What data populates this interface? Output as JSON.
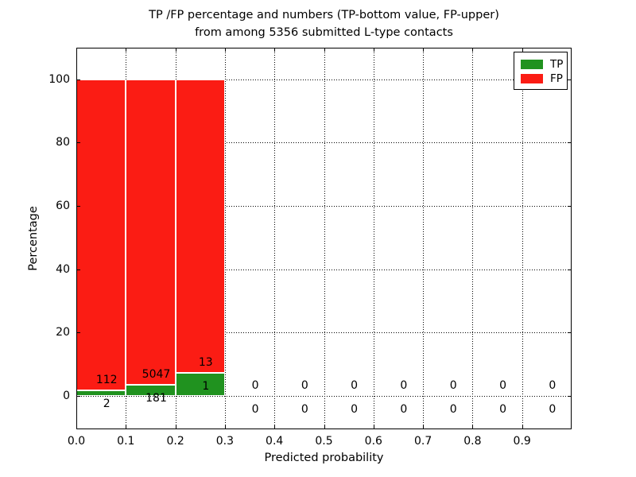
{
  "chart_data": {
    "type": "bar",
    "stacked": true,
    "title_line1": "TP /FP percentage and numbers (TP-bottom value, FP-upper)",
    "title_line2": "from among 5356 submitted L-type contacts",
    "xlabel": "Predicted probability",
    "ylabel": "Percentage",
    "xlim": [
      0.0,
      1.0
    ],
    "ylim": [
      -10.6,
      110
    ],
    "x_tick_labels": [
      "0.0",
      "0.1",
      "0.2",
      "0.3",
      "0.4",
      "0.5",
      "0.6",
      "0.7",
      "0.8",
      "0.9"
    ],
    "x_tick_values": [
      0.0,
      0.1,
      0.2,
      0.3,
      0.4,
      0.5,
      0.6,
      0.7,
      0.8,
      0.9
    ],
    "y_tick_values": [
      0,
      20,
      40,
      60,
      80,
      100
    ],
    "grid": "dotted",
    "legend_position": "upper right",
    "bin_width": 0.1,
    "bin_starts": [
      0.0,
      0.1,
      0.2,
      0.3,
      0.4,
      0.5,
      0.6,
      0.7,
      0.8,
      0.9
    ],
    "series": [
      {
        "name": "TP",
        "color": "#20921f",
        "counts": [
          2,
          181,
          1,
          0,
          0,
          0,
          0,
          0,
          0,
          0
        ]
      },
      {
        "name": "FP",
        "color": "#fb1c14",
        "counts": [
          112,
          5047,
          13,
          0,
          0,
          0,
          0,
          0,
          0,
          0
        ]
      }
    ],
    "percent_heights": {
      "tp_pct": [
        1.75,
        3.46,
        7.14,
        0,
        0,
        0,
        0,
        0,
        0,
        0
      ],
      "fp_pct": [
        98.25,
        96.54,
        92.86,
        0,
        0,
        0,
        0,
        0,
        0,
        0
      ]
    },
    "bar_edge_color": "#ffffff",
    "total_contacts": 5356
  },
  "legend": {
    "items": [
      {
        "label": "TP",
        "color": "#20921f"
      },
      {
        "label": "FP",
        "color": "#fb1c14"
      }
    ]
  }
}
